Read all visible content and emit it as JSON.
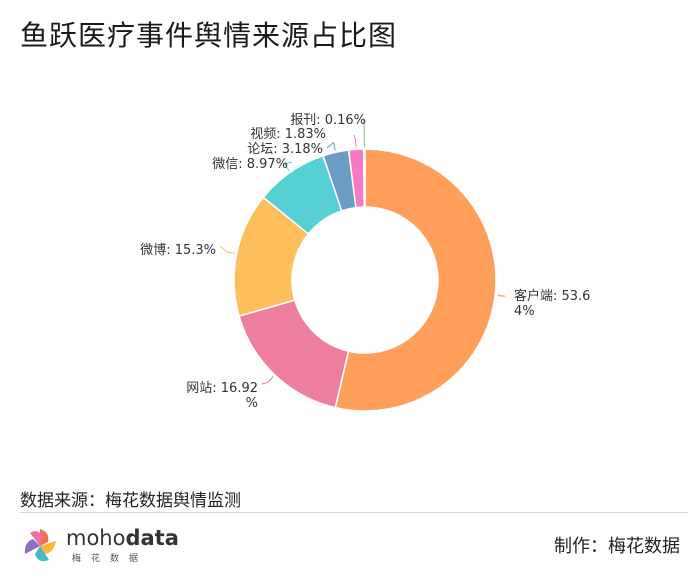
{
  "title": "鱼跃医疗事件舆情来源占比图",
  "footer": {
    "source": "数据来源：梅花数据舆情监测",
    "maker": "制作：梅花数据",
    "logo_primary": "moho",
    "logo_bold": "data",
    "logo_sub": "梅花数据"
  },
  "chart_data": {
    "type": "pie",
    "donut": true,
    "slices": [
      {
        "label": "客户端",
        "value": 53.64,
        "text_lines": [
          "客户端: 53.6",
          "4%"
        ],
        "color": "#FF9F5A"
      },
      {
        "label": "网站",
        "value": 16.92,
        "text_lines": [
          "网站: 16.92",
          "%"
        ],
        "color": "#EE7E9E"
      },
      {
        "label": "微博",
        "value": 15.3,
        "text_lines": [
          "微博: 15.3%"
        ],
        "color": "#FFBE5C"
      },
      {
        "label": "微信",
        "value": 8.97,
        "text_lines": [
          "微信: 8.97%"
        ],
        "color": "#55D0D5"
      },
      {
        "label": "论坛",
        "value": 3.18,
        "text_lines": [
          "论坛: 3.18%"
        ],
        "color": "#6C9BC5"
      },
      {
        "label": "视频",
        "value": 1.83,
        "text_lines": [
          "视频: 1.83%"
        ],
        "color": "#F877C8"
      },
      {
        "label": "报刊",
        "value": 0.16,
        "text_lines": [
          "报刊: 0.16%"
        ],
        "color": "#8FB26E"
      }
    ]
  }
}
